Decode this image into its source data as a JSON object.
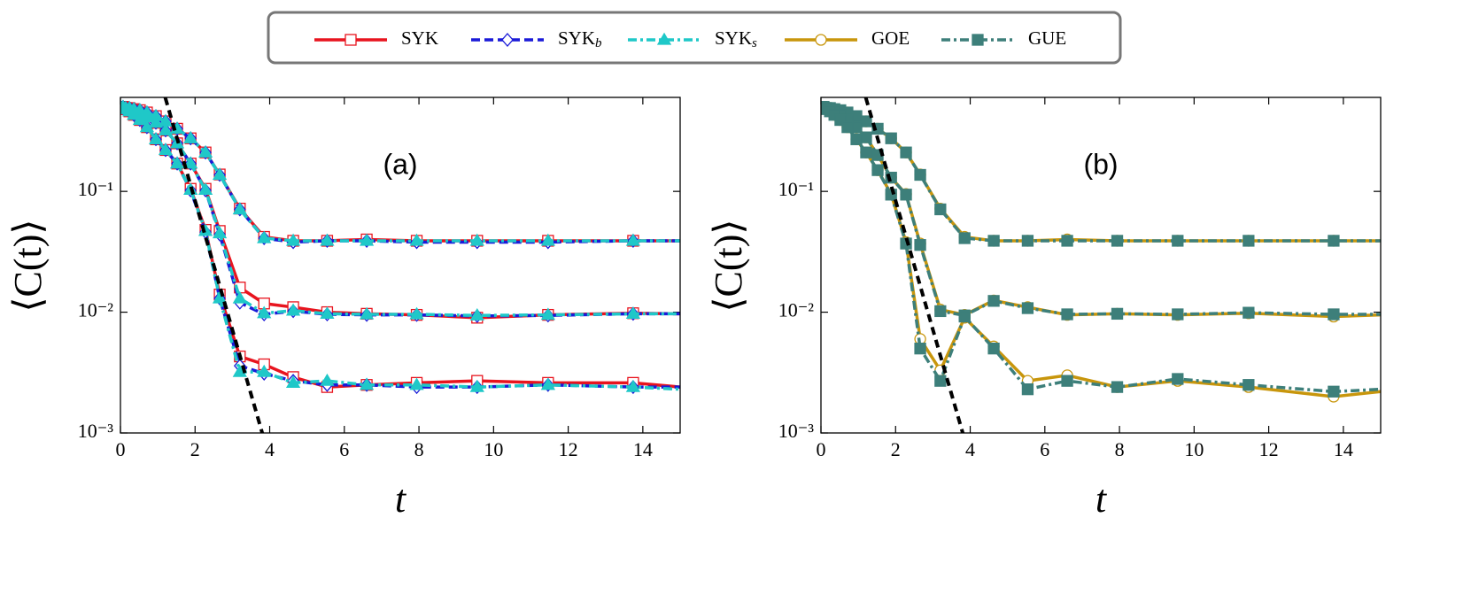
{
  "chart_data": [
    {
      "type": "line",
      "log_y": true,
      "annotation": "(a)",
      "x_label": "t",
      "y_label": "⟨C(t)⟩",
      "xlim": [
        0,
        15
      ],
      "ylim": [
        0.001,
        0.6
      ],
      "xticks": [
        0,
        2,
        4,
        6,
        8,
        10,
        12,
        14
      ],
      "yticks": [
        {
          "value": 0.1,
          "label": "10⁻¹"
        },
        {
          "value": 0.01,
          "label": "10⁻²"
        },
        {
          "value": 0.001,
          "label": "10⁻³"
        }
      ],
      "reference_line": {
        "color": "#000000",
        "x": [
          1.2,
          3.8
        ],
        "values": [
          0.6,
          0.001
        ]
      },
      "x": [
        0,
        0.07,
        0.14,
        0.24,
        0.36,
        0.52,
        0.71,
        0.95,
        1.21,
        1.52,
        1.88,
        2.28,
        2.66,
        3.2,
        3.85,
        4.63,
        5.54,
        6.6,
        7.94,
        9.56,
        11.46,
        13.74,
        15
      ],
      "series": [
        {
          "name": "SYK",
          "color": "#e8141e",
          "dash": "solid",
          "marker": "square",
          "marker_fill": false,
          "curves": [
            {
              "values": [
                0.5,
                0.5,
                0.49,
                0.49,
                0.48,
                0.47,
                0.45,
                0.42,
                0.38,
                0.33,
                0.275,
                0.21,
                0.138,
                0.072,
                0.042,
                0.039,
                0.039,
                0.04,
                0.039,
                0.039,
                0.039,
                0.039,
                0.039
              ]
            },
            {
              "values": [
                0.5,
                0.5,
                0.49,
                0.48,
                0.46,
                0.44,
                0.41,
                0.37,
                0.32,
                0.25,
                0.17,
                0.105,
                0.047,
                0.016,
                0.0118,
                0.011,
                0.01,
                0.0097,
                0.0095,
                0.009,
                0.0095,
                0.0098,
                0.0097
              ]
            },
            {
              "values": [
                0.5,
                0.49,
                0.48,
                0.46,
                0.43,
                0.39,
                0.34,
                0.27,
                0.22,
                0.17,
                0.105,
                0.048,
                0.014,
                0.0043,
                0.0037,
                0.0029,
                0.0024,
                0.0025,
                0.0026,
                0.0027,
                0.0026,
                0.0026,
                0.0024
              ]
            }
          ]
        },
        {
          "name": "SYK",
          "name_subscript": "b",
          "color": "#1a1ad8",
          "dash": "dashed",
          "marker": "diamond",
          "marker_fill": false,
          "curves": [
            {
              "values": [
                0.5,
                0.5,
                0.49,
                0.49,
                0.48,
                0.47,
                0.45,
                0.42,
                0.38,
                0.33,
                0.275,
                0.21,
                0.137,
                0.071,
                0.041,
                0.038,
                0.039,
                0.039,
                0.038,
                0.038,
                0.038,
                0.039,
                0.039
              ]
            },
            {
              "values": [
                0.5,
                0.5,
                0.49,
                0.48,
                0.46,
                0.44,
                0.41,
                0.37,
                0.32,
                0.25,
                0.17,
                0.102,
                0.044,
                0.012,
                0.0096,
                0.0102,
                0.0096,
                0.0095,
                0.0095,
                0.0093,
                0.0094,
                0.0097,
                0.0097
              ]
            },
            {
              "values": [
                0.5,
                0.49,
                0.48,
                0.46,
                0.43,
                0.39,
                0.34,
                0.27,
                0.22,
                0.17,
                0.102,
                0.046,
                0.013,
                0.0036,
                0.0031,
                0.0027,
                0.0025,
                0.0025,
                0.0024,
                0.0024,
                0.0025,
                0.0024,
                0.0024
              ]
            }
          ]
        },
        {
          "name": "SYK",
          "name_subscript": "s",
          "color": "#1fc8c8",
          "dash": "dashdot",
          "marker": "triangle",
          "marker_fill": true,
          "curves": [
            {
              "values": [
                0.5,
                0.5,
                0.49,
                0.49,
                0.48,
                0.47,
                0.45,
                0.42,
                0.38,
                0.33,
                0.275,
                0.21,
                0.137,
                0.071,
                0.041,
                0.039,
                0.039,
                0.039,
                0.039,
                0.039,
                0.039,
                0.039,
                0.039
              ]
            },
            {
              "values": [
                0.5,
                0.5,
                0.49,
                0.48,
                0.46,
                0.44,
                0.41,
                0.37,
                0.32,
                0.25,
                0.17,
                0.103,
                0.045,
                0.013,
                0.0098,
                0.0103,
                0.0097,
                0.0096,
                0.0096,
                0.0094,
                0.0095,
                0.0097,
                0.0097
              ]
            },
            {
              "values": [
                0.5,
                0.49,
                0.48,
                0.46,
                0.43,
                0.39,
                0.34,
                0.27,
                0.22,
                0.17,
                0.103,
                0.047,
                0.013,
                0.0032,
                0.0032,
                0.0026,
                0.0027,
                0.0025,
                0.0025,
                0.0024,
                0.0025,
                0.0024,
                0.0023
              ]
            }
          ]
        }
      ]
    },
    {
      "type": "line",
      "log_y": true,
      "annotation": "(b)",
      "x_label": "t",
      "y_label": "⟨C(t)⟩",
      "xlim": [
        0,
        15
      ],
      "ylim": [
        0.001,
        0.6
      ],
      "xticks": [
        0,
        2,
        4,
        6,
        8,
        10,
        12,
        14
      ],
      "yticks": [
        {
          "value": 0.1,
          "label": "10⁻¹"
        },
        {
          "value": 0.01,
          "label": "10⁻²"
        },
        {
          "value": 0.001,
          "label": "10⁻³"
        }
      ],
      "reference_line": {
        "color": "#000000",
        "x": [
          1.2,
          3.8
        ],
        "values": [
          0.6,
          0.001
        ]
      },
      "x": [
        0,
        0.07,
        0.14,
        0.24,
        0.36,
        0.52,
        0.71,
        0.95,
        1.21,
        1.52,
        1.88,
        2.28,
        2.66,
        3.2,
        3.85,
        4.63,
        5.54,
        6.6,
        7.94,
        9.56,
        11.46,
        13.74,
        15
      ],
      "series": [
        {
          "name": "GOE",
          "color": "#c8960c",
          "dash": "solid",
          "marker": "circle",
          "marker_fill": false,
          "curves": [
            {
              "values": [
                0.5,
                0.5,
                0.49,
                0.49,
                0.48,
                0.47,
                0.45,
                0.42,
                0.38,
                0.33,
                0.275,
                0.21,
                0.138,
                0.072,
                0.042,
                0.039,
                0.039,
                0.04,
                0.039,
                0.039,
                0.039,
                0.039,
                0.039
              ]
            },
            {
              "values": [
                0.5,
                0.5,
                0.49,
                0.48,
                0.46,
                0.43,
                0.39,
                0.34,
                0.28,
                0.2,
                0.13,
                0.095,
                0.037,
                0.0105,
                0.0095,
                0.0125,
                0.011,
                0.0095,
                0.0097,
                0.0095,
                0.0098,
                0.0092,
                0.0095
              ]
            },
            {
              "values": [
                0.5,
                0.49,
                0.48,
                0.46,
                0.43,
                0.39,
                0.34,
                0.27,
                0.21,
                0.15,
                0.095,
                0.038,
                0.006,
                0.0033,
                0.009,
                0.0052,
                0.0027,
                0.003,
                0.0024,
                0.0027,
                0.0024,
                0.002,
                0.0022
              ]
            }
          ]
        },
        {
          "name": "GUE",
          "color": "#3d7f7a",
          "dash": "dashdot",
          "marker": "square",
          "marker_fill": true,
          "curves": [
            {
              "values": [
                0.5,
                0.5,
                0.49,
                0.49,
                0.48,
                0.47,
                0.45,
                0.42,
                0.38,
                0.33,
                0.275,
                0.21,
                0.137,
                0.071,
                0.041,
                0.039,
                0.039,
                0.039,
                0.039,
                0.039,
                0.039,
                0.039,
                0.039
              ]
            },
            {
              "values": [
                0.5,
                0.5,
                0.49,
                0.48,
                0.46,
                0.43,
                0.39,
                0.34,
                0.28,
                0.2,
                0.13,
                0.094,
                0.036,
                0.0102,
                0.0094,
                0.0124,
                0.0108,
                0.0096,
                0.0097,
                0.0096,
                0.0099,
                0.0096,
                0.0096
              ]
            },
            {
              "values": [
                0.5,
                0.49,
                0.48,
                0.46,
                0.43,
                0.39,
                0.34,
                0.27,
                0.21,
                0.15,
                0.094,
                0.037,
                0.005,
                0.0027,
                0.0092,
                0.005,
                0.0023,
                0.0027,
                0.0024,
                0.0028,
                0.0025,
                0.0022,
                0.0023
              ]
            }
          ]
        }
      ]
    }
  ]
}
